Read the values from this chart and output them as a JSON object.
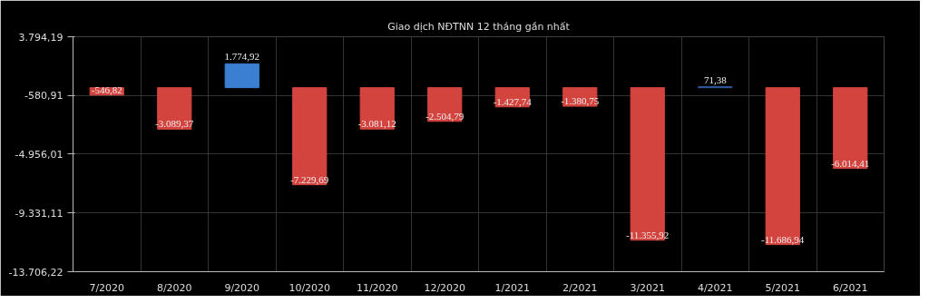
{
  "chart_data": {
    "type": "bar",
    "title": "Giao dịch NĐTNN 12 tháng gần nhất",
    "categories": [
      "7/2020",
      "8/2020",
      "9/2020",
      "10/2020",
      "11/2020",
      "12/2020",
      "1/2021",
      "2/2021",
      "3/2021",
      "4/2021",
      "5/2021",
      "6/2021"
    ],
    "values": [
      -546.82,
      -3089.37,
      1774.92,
      -7229.69,
      -3081.12,
      -2504.79,
      -1427.74,
      -1380.75,
      -11355.92,
      71.38,
      -11686.94,
      -6014.41
    ],
    "colors": [
      "#d4443f",
      "#d4443f",
      "#3a7fd2",
      "#d4443f",
      "#d4443f",
      "#d4443f",
      "#d4443f",
      "#d4443f",
      "#d4443f",
      "#2f5a9e",
      "#d4443f",
      "#d4443f"
    ],
    "value_labels": [
      "-546,82",
      "-3.089,37",
      "1.774,92",
      "-7.229,69",
      "-3.081,12",
      "-2.504,79",
      "-1.427,74",
      "-1.380,75",
      "-11.355,92",
      "71,38",
      "-11.686,94",
      "-6.014,41"
    ],
    "ylim": [
      -13706.22,
      3794.19
    ],
    "yticks": [
      {
        "value": 3794.19,
        "label": "3.794,19"
      },
      {
        "value": -580.91,
        "label": "-580,91"
      },
      {
        "value": -4956.01,
        "label": "-4.956,01"
      },
      {
        "value": -9331.11,
        "label": "-9.331,11"
      },
      {
        "value": -13706.22,
        "label": "-13.706,22"
      }
    ],
    "grid": true
  }
}
